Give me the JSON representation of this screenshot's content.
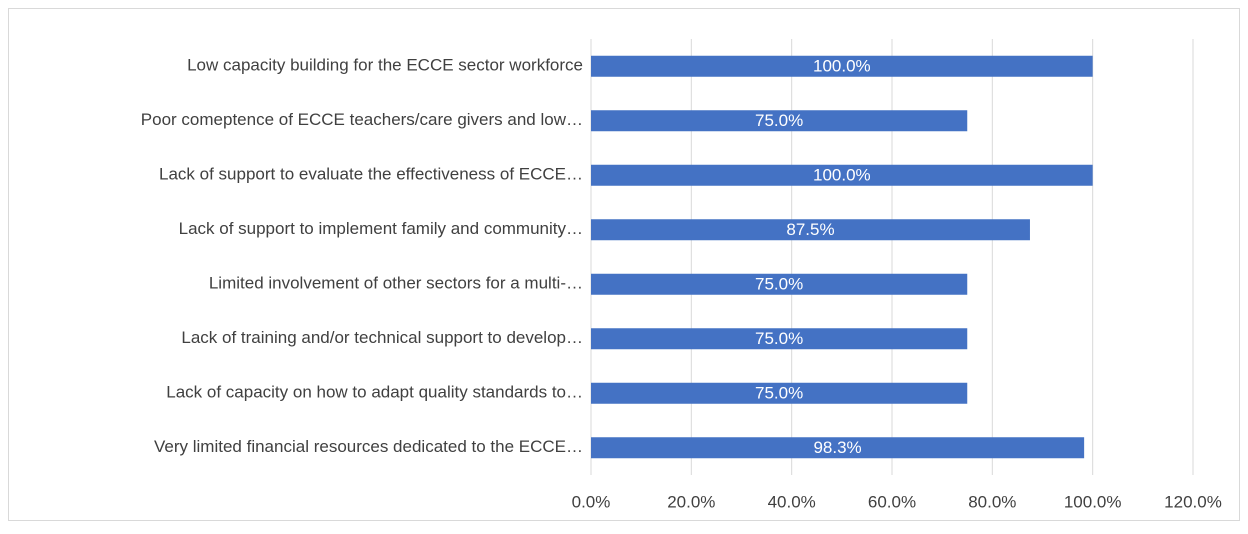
{
  "chart_data": {
    "type": "bar",
    "orientation": "horizontal",
    "categories": [
      "Low capacity building for the ECCE sector workforce",
      "Poor comeptence of ECCE teachers/care givers and low…",
      "Lack of support to evaluate the effectiveness of ECCE…",
      "Lack of support to implement family and community…",
      "Limited involvement of other sectors for a multi-…",
      "Lack of training and/or technical support to develop…",
      "Lack of capacity on how to adapt quality standards to…",
      "Very limited  financial resources dedicated to the ECCE…"
    ],
    "values": [
      100,
      75,
      100,
      87.5,
      75,
      75,
      75,
      98.3
    ],
    "value_labels": [
      "100.0%",
      "75.0%",
      "100.0%",
      "87.5%",
      "75.0%",
      "75.0%",
      "75.0%",
      "98.3%"
    ],
    "color": "#4472c4",
    "xlim": [
      0,
      120
    ],
    "xticks": [
      {
        "value": 0,
        "label": "0.0%"
      },
      {
        "value": 20,
        "label": "20.0%"
      },
      {
        "value": 40,
        "label": "40.0%"
      },
      {
        "value": 60,
        "label": "60.0%"
      },
      {
        "value": 80,
        "label": "80.0%"
      },
      {
        "value": 100,
        "label": "100.0%"
      },
      {
        "value": 120,
        "label": "120.0%"
      }
    ],
    "grid": true
  }
}
